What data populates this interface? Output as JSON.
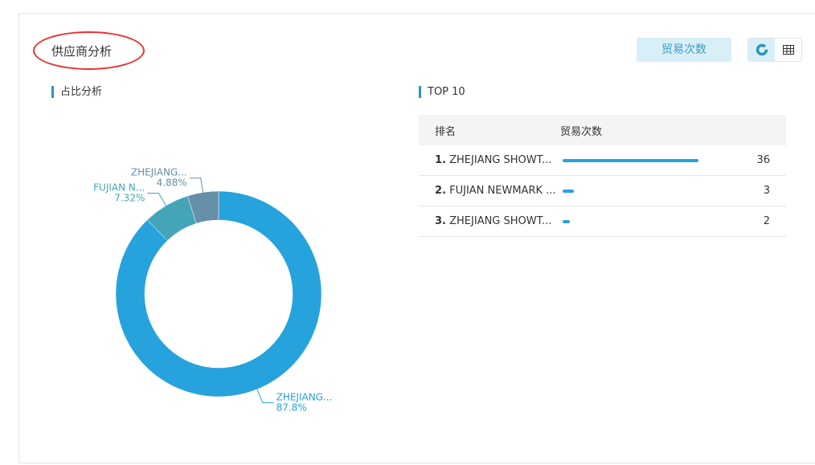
{
  "header": {
    "title": "供应商分析",
    "metric_button": "贸易次数",
    "view_toggle": [
      {
        "icon": "donut-chart-icon",
        "active": true
      },
      {
        "icon": "table-icon",
        "active": false
      }
    ]
  },
  "left": {
    "subtitle": "占比分析"
  },
  "right": {
    "subtitle": "TOP 10",
    "columns": [
      "排名",
      "贸易次数"
    ],
    "rows": [
      {
        "rank": "1.",
        "name": "ZHEJIANG SHOWT...",
        "count": 36
      },
      {
        "rank": "2.",
        "name": "FUJIAN NEWMARK ...",
        "count": 3
      },
      {
        "rank": "3.",
        "name": "ZHEJIANG SHOWT...",
        "count": 2
      }
    ]
  },
  "colors": {
    "accent": "#26a2dc",
    "highlight": "#e8322f"
  },
  "chart_data": {
    "type": "pie",
    "donut": true,
    "slices": [
      {
        "label": "ZHEJIANG...",
        "percent_label": "87.8%",
        "value": 87.8,
        "color": "#26a2dc"
      },
      {
        "label": "FUJIAN N...",
        "percent_label": "7.32%",
        "value": 7.32,
        "color": "#45a5b8"
      },
      {
        "label": "ZHEJIANG...",
        "percent_label": "4.88%",
        "value": 4.88,
        "color": "#6590a8"
      }
    ]
  }
}
